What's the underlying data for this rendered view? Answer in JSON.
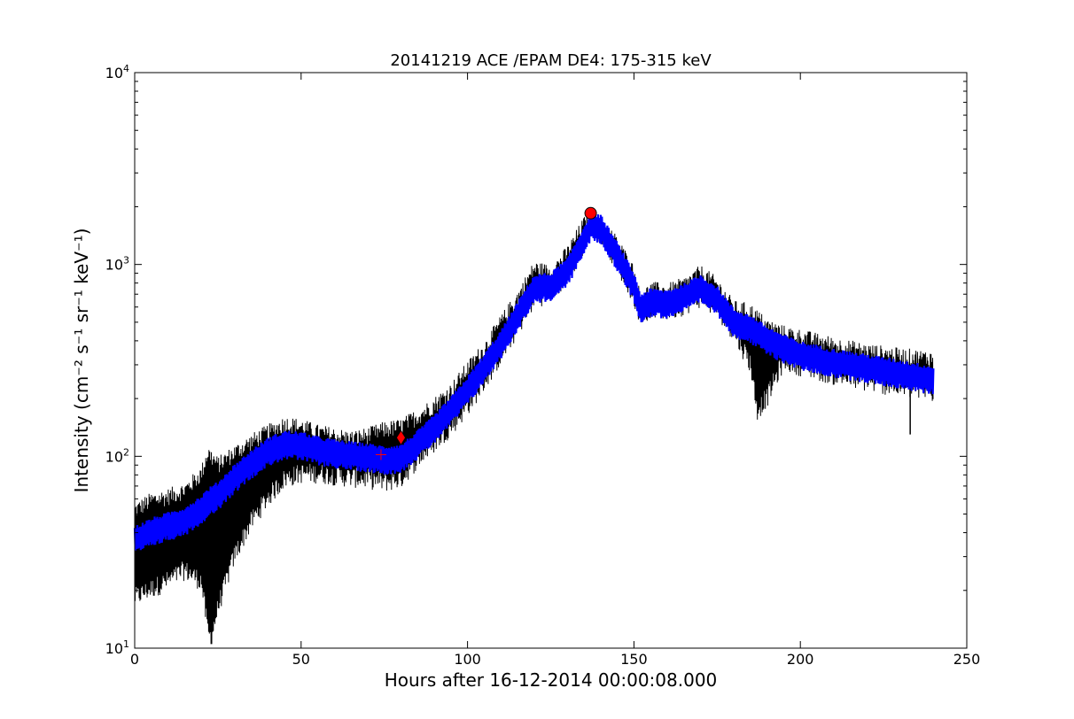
{
  "chart_data": {
    "type": "line",
    "title": "20141219 ACE /EPAM DE4: 175-315 keV",
    "xlabel": "Hours after 16-12-2014 00:00:08.000",
    "ylabel": "Intensity (cm⁻² s⁻¹ sr⁻¹ keV⁻¹)",
    "xlim": [
      0,
      250
    ],
    "ylim": [
      10,
      10000
    ],
    "yscale": "log",
    "x_ticks": [
      0,
      50,
      100,
      150,
      200,
      250
    ],
    "x_tick_labels": [
      "0",
      "50",
      "100",
      "150",
      "200",
      "250"
    ],
    "y_ticks": [
      10,
      100,
      1000,
      10000
    ],
    "y_tick_labels": [
      {
        "base": "10",
        "exp": "1"
      },
      {
        "base": "10",
        "exp": "2"
      },
      {
        "base": "10",
        "exp": "3"
      },
      {
        "base": "10",
        "exp": "4"
      }
    ],
    "grid": false,
    "series": [
      {
        "color": "#000000",
        "role": "upper_envelope",
        "x": [
          0,
          5,
          10,
          15,
          20,
          22,
          25,
          30,
          35,
          40,
          45,
          50,
          55,
          60,
          65,
          70,
          75,
          80,
          85,
          90,
          95,
          100,
          105,
          110,
          115,
          120,
          125,
          130,
          135,
          137,
          140,
          145,
          150,
          152,
          155,
          160,
          165,
          170,
          175,
          180,
          185,
          190,
          195,
          200,
          210,
          220,
          230,
          240
        ],
        "y": [
          55,
          62,
          65,
          70,
          85,
          110,
          95,
          110,
          125,
          140,
          155,
          150,
          140,
          135,
          130,
          135,
          145,
          150,
          170,
          195,
          230,
          300,
          380,
          520,
          700,
          1000,
          950,
          1200,
          1700,
          1850,
          1700,
          1350,
          950,
          680,
          780,
          760,
          820,
          950,
          820,
          620,
          600,
          500,
          460,
          440,
          400,
          370,
          350,
          340
        ]
      },
      {
        "color": "#0000ff",
        "role": "center",
        "x": [
          0,
          5,
          10,
          15,
          20,
          22,
          25,
          30,
          35,
          40,
          45,
          50,
          55,
          60,
          65,
          70,
          75,
          80,
          85,
          90,
          95,
          100,
          105,
          110,
          115,
          120,
          125,
          130,
          135,
          137,
          140,
          145,
          150,
          152,
          155,
          160,
          165,
          170,
          175,
          180,
          185,
          190,
          195,
          200,
          210,
          220,
          230,
          240
        ],
        "y": [
          38,
          42,
          45,
          48,
          55,
          60,
          65,
          80,
          95,
          110,
          120,
          118,
          112,
          108,
          105,
          103,
          100,
          102,
          120,
          145,
          180,
          230,
          300,
          400,
          560,
          780,
          800,
          950,
          1400,
          1650,
          1600,
          1150,
          800,
          620,
          660,
          650,
          700,
          780,
          680,
          520,
          480,
          420,
          380,
          350,
          320,
          300,
          280,
          260
        ]
      },
      {
        "color": "#000000",
        "role": "lower_envelope",
        "x": [
          0,
          5,
          10,
          15,
          20,
          22,
          23,
          25,
          30,
          35,
          40,
          45,
          50,
          55,
          60,
          65,
          70,
          75,
          80,
          85,
          90,
          95,
          100,
          105,
          110,
          115,
          120,
          125,
          130,
          135,
          137,
          140,
          145,
          150,
          152,
          155,
          160,
          165,
          170,
          175,
          180,
          185,
          187,
          190,
          195,
          200,
          210,
          220,
          230,
          240
        ],
        "y": [
          18,
          20,
          22,
          25,
          22,
          12,
          11,
          16,
          30,
          45,
          60,
          75,
          80,
          80,
          78,
          76,
          75,
          72,
          75,
          95,
          115,
          140,
          180,
          240,
          330,
          460,
          650,
          700,
          850,
          1250,
          1500,
          1450,
          1000,
          680,
          520,
          580,
          560,
          600,
          660,
          580,
          440,
          300,
          170,
          200,
          310,
          290,
          260,
          240,
          225,
          210
        ]
      }
    ],
    "markers": [
      {
        "shape": "circle",
        "color": "#ff0000",
        "x": 137,
        "y": 1850
      },
      {
        "shape": "diamond",
        "color": "#ff0000",
        "x": 80,
        "y": 125
      },
      {
        "shape": "plus",
        "color": "#ff0000",
        "x": 74,
        "y": 102
      }
    ]
  }
}
